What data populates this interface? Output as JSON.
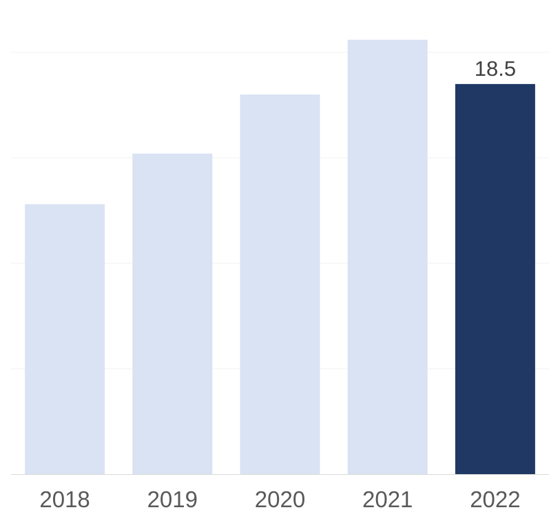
{
  "chart_data": {
    "type": "bar",
    "title": "",
    "xlabel": "",
    "ylabel": "",
    "categories": [
      "2018",
      "2019",
      "2020",
      "2021",
      "2022"
    ],
    "values": [
      12.8,
      15.2,
      18.0,
      20.6,
      18.5
    ],
    "ylim": [
      0,
      20
    ],
    "grid": true,
    "legend": "none",
    "data_labels": [
      {
        "category": "2022",
        "text": "18.5"
      }
    ],
    "colors": {
      "bar": "#dae3f3",
      "highlight_bar": "#203864",
      "gridline": "#f0f0f0",
      "axis_line": "#d9d9d9"
    },
    "highlight_category": "2022"
  }
}
